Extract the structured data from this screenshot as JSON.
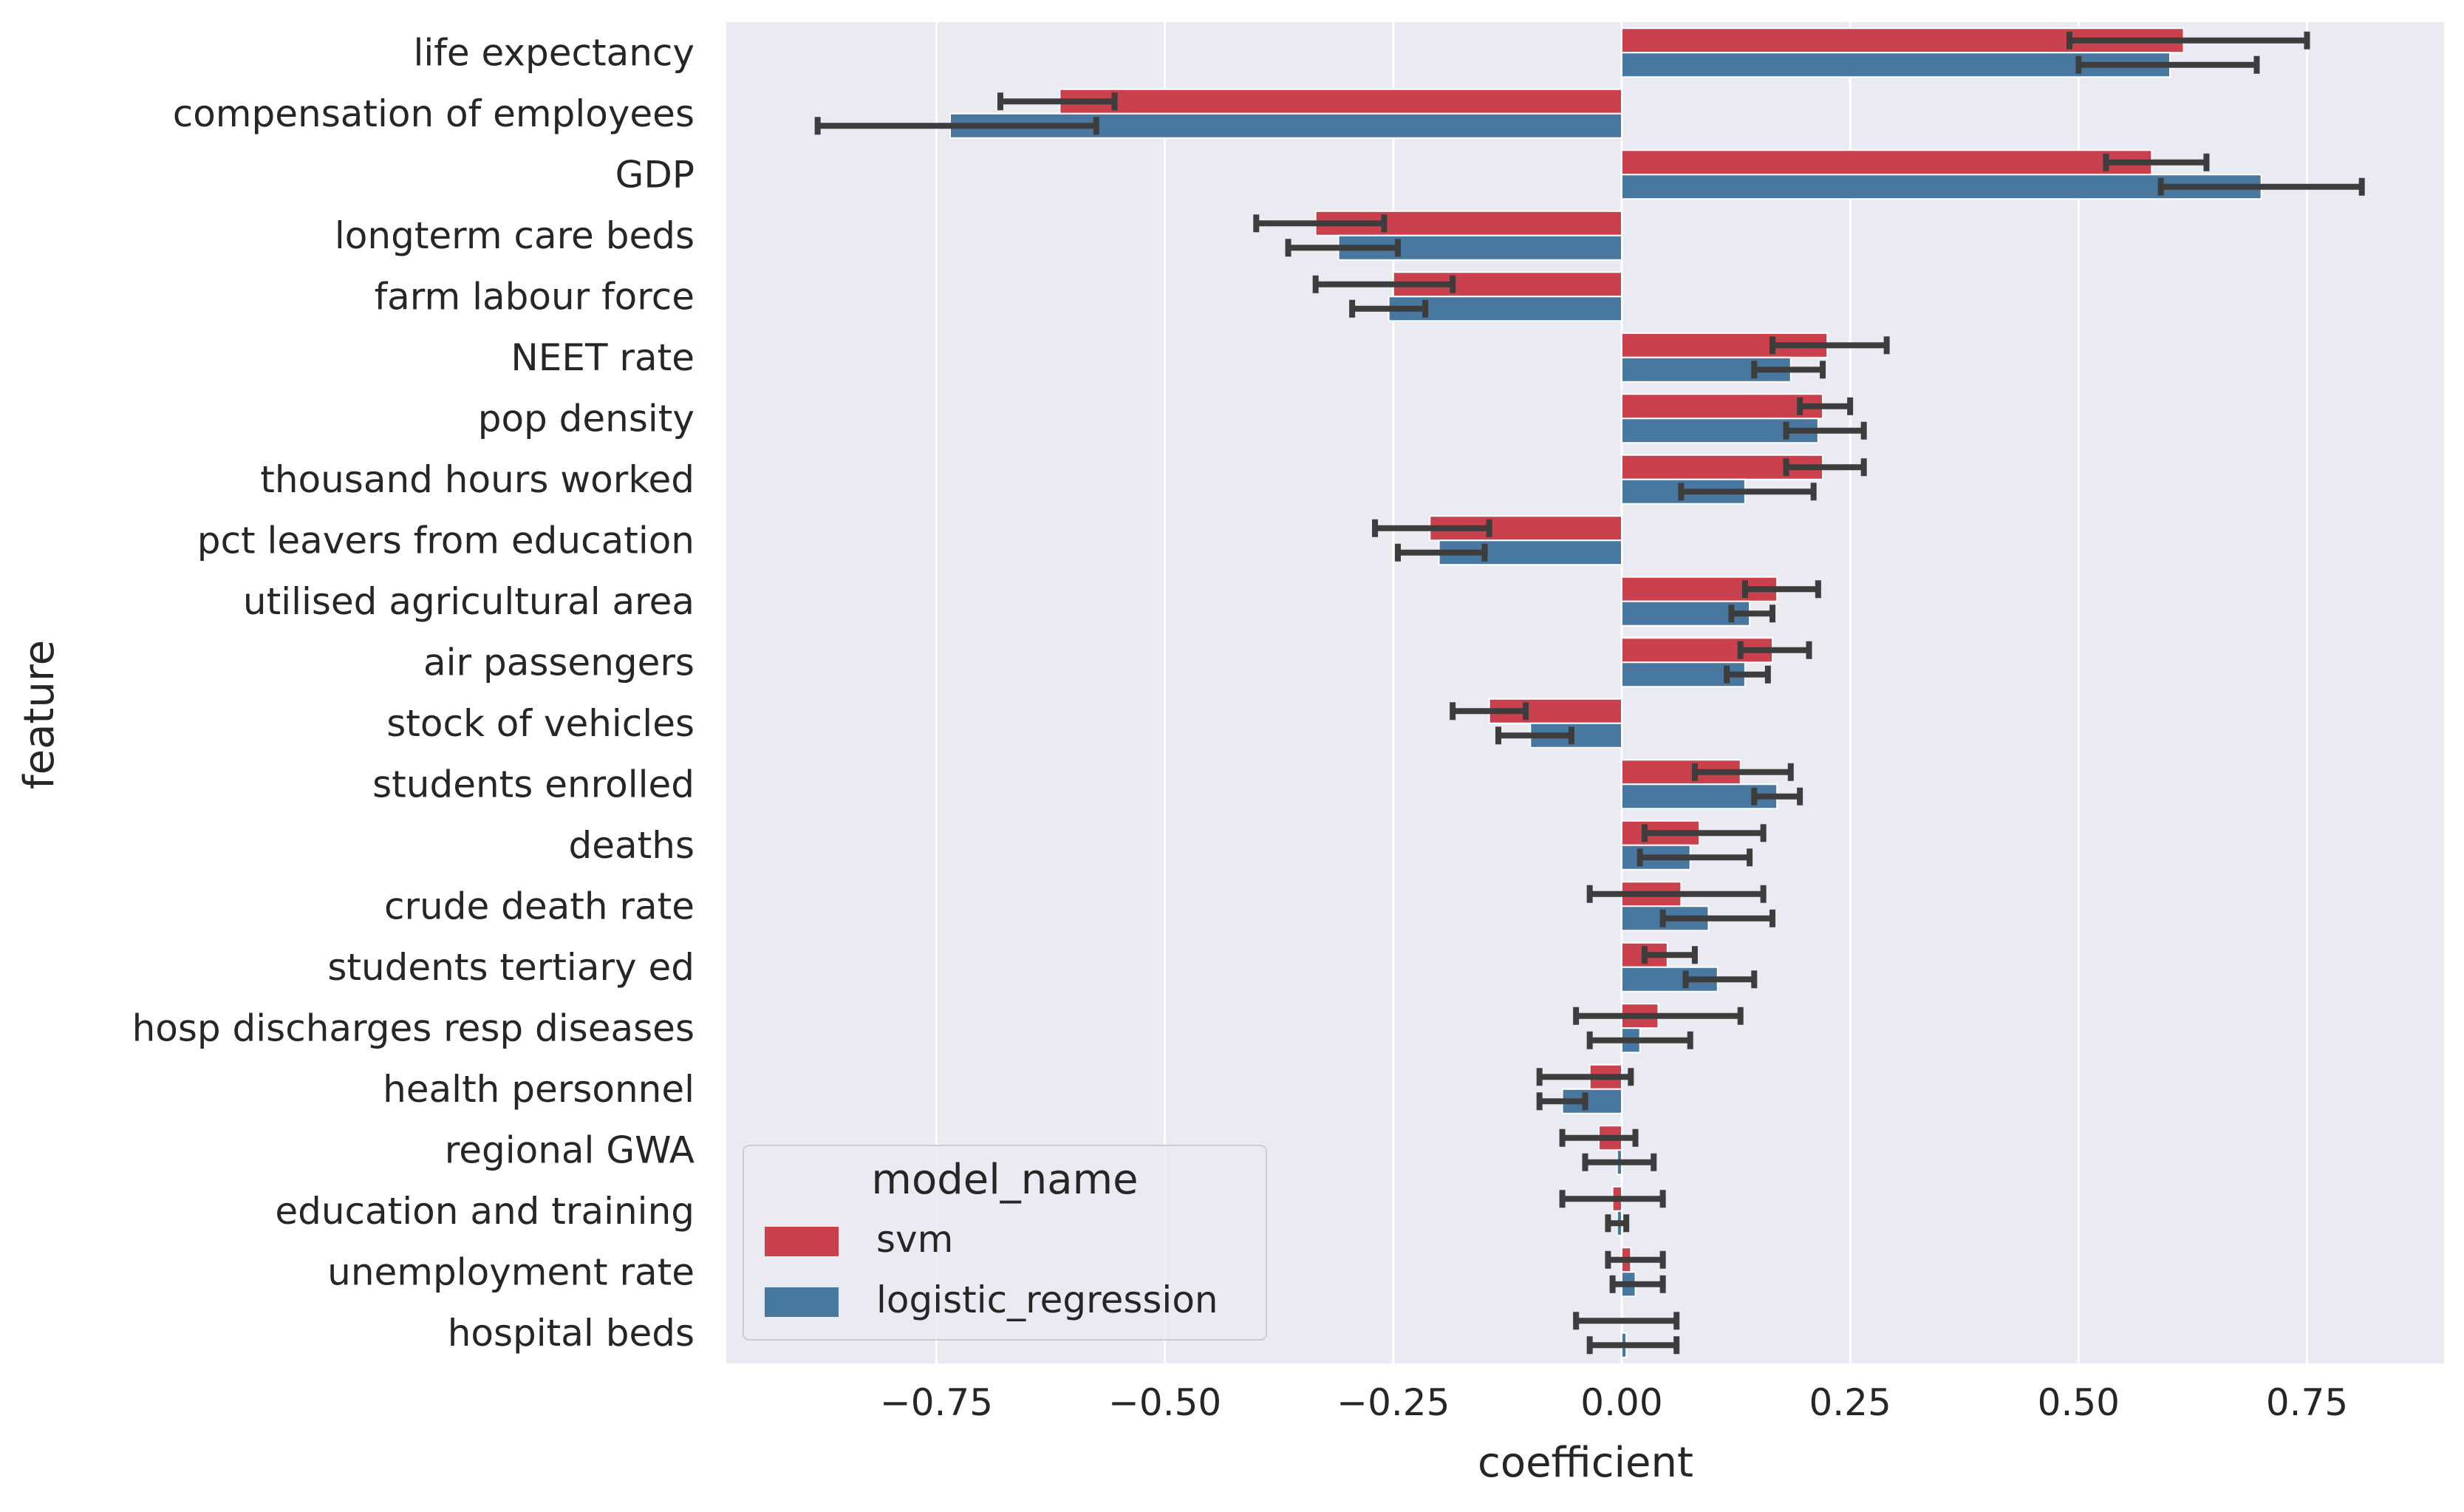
{
  "chart_data": {
    "type": "bar",
    "orientation": "horizontal",
    "xlabel": "coefficient",
    "ylabel": "feature",
    "xlim": [
      -0.98,
      0.9
    ],
    "xticks": [
      -0.75,
      -0.5,
      -0.25,
      0.0,
      0.25,
      0.5,
      0.75
    ],
    "xtick_labels": [
      "−0.75",
      "−0.50",
      "−0.25",
      "0.00",
      "0.25",
      "0.50",
      "0.75"
    ],
    "grid": true,
    "legend": {
      "title": "model_name",
      "placement": "lower-left"
    },
    "categories": [
      "life expectancy",
      "compensation of employees",
      "GDP",
      "longterm care beds",
      "farm labour force",
      "NEET rate",
      "pop density",
      "thousand hours worked",
      "pct leavers from education",
      "utilised agricultural area",
      "air passengers",
      "stock of vehicles",
      "students enrolled",
      "deaths",
      "crude death rate",
      "students tertiary ed",
      "hosp discharges resp diseases",
      "health personnel",
      "regional GWA",
      "education and training",
      "unemployment rate",
      "hospital beds"
    ],
    "series": [
      {
        "name": "svm",
        "color": "#c9414d",
        "values": [
          0.615,
          -0.615,
          0.58,
          -0.335,
          -0.25,
          0.225,
          0.22,
          0.22,
          -0.21,
          0.17,
          0.165,
          -0.145,
          0.13,
          0.085,
          0.065,
          0.05,
          0.04,
          -0.035,
          -0.025,
          -0.01,
          0.01,
          0.0
        ],
        "ci_low": [
          0.49,
          -0.68,
          0.53,
          -0.4,
          -0.335,
          0.165,
          0.195,
          0.18,
          -0.27,
          0.135,
          0.13,
          -0.185,
          0.08,
          0.025,
          -0.035,
          0.025,
          -0.05,
          -0.09,
          -0.065,
          -0.065,
          -0.015,
          -0.05
        ],
        "ci_high": [
          0.75,
          -0.555,
          0.64,
          -0.26,
          -0.185,
          0.29,
          0.25,
          0.265,
          -0.145,
          0.215,
          0.205,
          -0.105,
          0.185,
          0.155,
          0.155,
          0.08,
          0.13,
          0.01,
          0.015,
          0.045,
          0.045,
          0.06
        ]
      },
      {
        "name": "logistic_regression",
        "color": "#4878a0",
        "values": [
          0.6,
          -0.735,
          0.7,
          -0.31,
          -0.255,
          0.185,
          0.215,
          0.135,
          -0.2,
          0.14,
          0.135,
          -0.1,
          0.17,
          0.075,
          0.095,
          0.105,
          0.02,
          -0.065,
          -0.005,
          -0.005,
          0.015,
          0.005
        ],
        "ci_low": [
          0.5,
          -0.88,
          0.59,
          -0.365,
          -0.295,
          0.145,
          0.18,
          0.065,
          -0.245,
          0.12,
          0.115,
          -0.135,
          0.145,
          0.02,
          0.045,
          0.07,
          -0.035,
          -0.09,
          -0.04,
          -0.015,
          -0.01,
          -0.035
        ],
        "ci_high": [
          0.695,
          -0.575,
          0.81,
          -0.245,
          -0.215,
          0.22,
          0.265,
          0.21,
          -0.15,
          0.165,
          0.16,
          -0.055,
          0.195,
          0.14,
          0.165,
          0.145,
          0.075,
          -0.04,
          0.035,
          0.005,
          0.045,
          0.06
        ]
      }
    ]
  }
}
